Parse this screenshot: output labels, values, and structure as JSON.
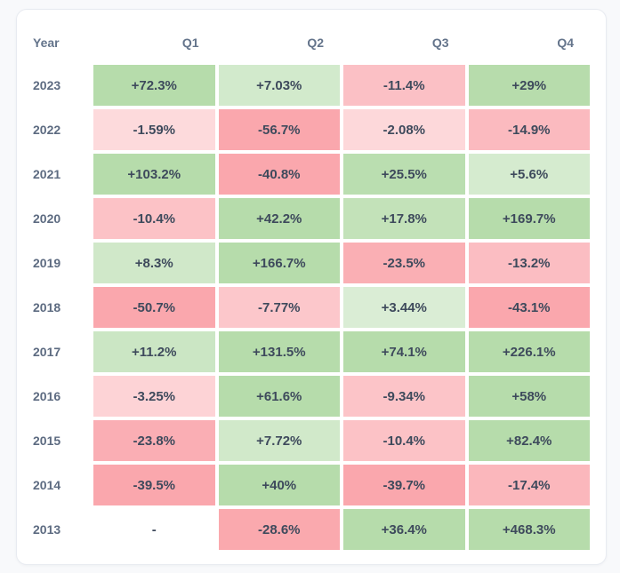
{
  "page": {
    "background": "#f8f9fb"
  },
  "card": {
    "background": "#ffffff",
    "border_color": "#e8ebf1"
  },
  "text_colors": {
    "header": "#64748b",
    "year": "#5d6b81",
    "cell_value": "#3e4a5c"
  },
  "chart_data": {
    "type": "heatmap",
    "title": "",
    "columns": [
      "Year",
      "Q1",
      "Q2",
      "Q3",
      "Q4"
    ],
    "rows": [
      {
        "year": "2023",
        "cells": [
          "+72.3%",
          "+7.03%",
          "-11.4%",
          "+29%"
        ]
      },
      {
        "year": "2022",
        "cells": [
          "-1.59%",
          "-56.7%",
          "-2.08%",
          "-14.9%"
        ]
      },
      {
        "year": "2021",
        "cells": [
          "+103.2%",
          "-40.8%",
          "+25.5%",
          "+5.6%"
        ]
      },
      {
        "year": "2020",
        "cells": [
          "-10.4%",
          "+42.2%",
          "+17.8%",
          "+169.7%"
        ]
      },
      {
        "year": "2019",
        "cells": [
          "+8.3%",
          "+166.7%",
          "-23.5%",
          "-13.2%"
        ]
      },
      {
        "year": "2018",
        "cells": [
          "-50.7%",
          "-7.77%",
          "+3.44%",
          "-43.1%"
        ]
      },
      {
        "year": "2017",
        "cells": [
          "+11.2%",
          "+131.5%",
          "+74.1%",
          "+226.1%"
        ]
      },
      {
        "year": "2016",
        "cells": [
          "-3.25%",
          "+61.6%",
          "-9.34%",
          "+58%"
        ]
      },
      {
        "year": "2015",
        "cells": [
          "-23.8%",
          "+7.72%",
          "-10.4%",
          "+82.4%"
        ]
      },
      {
        "year": "2014",
        "cells": [
          "-39.5%",
          "+40%",
          "-39.7%",
          "-17.4%"
        ]
      },
      {
        "year": "2013",
        "cells": [
          "-",
          "-28.6%",
          "+36.4%",
          "+468.3%"
        ]
      }
    ],
    "empty_cell_label": "-",
    "colors": {
      "positive_max": "#b6dcab",
      "negative_max": "#faa7ad",
      "neutral_bg": "#ffffff"
    },
    "scale": {
      "cap_percent": 30,
      "min_intensity": 0.25,
      "easing": "sqrt"
    },
    "layout_hints": {
      "legend": "none",
      "grid": "off",
      "value_labels": "in-cell"
    }
  }
}
